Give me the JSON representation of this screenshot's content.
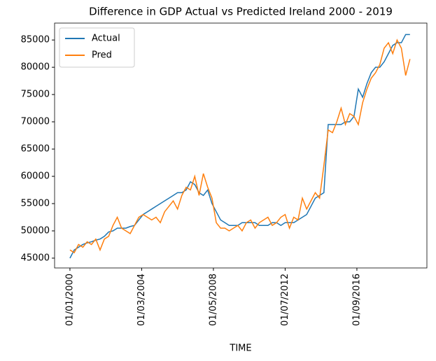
{
  "chart_data": {
    "type": "line",
    "title": "Difference in GDP Actual vs Predicted Ireland 2000 - 2019",
    "x_label": "TIME",
    "x": [
      0,
      3,
      6,
      9,
      12,
      15,
      18,
      21,
      24,
      27,
      30,
      33,
      36,
      39,
      42,
      45,
      48,
      51,
      54,
      57,
      60,
      63,
      66,
      69,
      72,
      75,
      78,
      81,
      84,
      87,
      90,
      93,
      96,
      99,
      102,
      105,
      108,
      111,
      114,
      117,
      120,
      123,
      126,
      129,
      132,
      135,
      138,
      141,
      144,
      147,
      150,
      153,
      156,
      159,
      162,
      165,
      168,
      171,
      174,
      177,
      180,
      183,
      186,
      189,
      192,
      195,
      198,
      201,
      204,
      207,
      210,
      213,
      216,
      219,
      222,
      225,
      228,
      231,
      234,
      237
    ],
    "series": [
      {
        "name": "Actual",
        "color": "#1f77b4",
        "values": [
          45000,
          46500,
          47000,
          47500,
          47800,
          48000,
          48300,
          48500,
          49000,
          49800,
          50000,
          50500,
          50500,
          50500,
          50800,
          51000,
          52000,
          53000,
          53500,
          54000,
          54500,
          55000,
          55500,
          56000,
          56500,
          57000,
          57000,
          57500,
          59000,
          58500,
          57000,
          56500,
          57500,
          55000,
          53500,
          52000,
          51500,
          51000,
          51000,
          51000,
          51500,
          51500,
          51500,
          51500,
          51000,
          51000,
          51000,
          51500,
          51500,
          51000,
          51500,
          51500,
          51500,
          52000,
          52500,
          53000,
          54500,
          56000,
          56500,
          57000,
          69500,
          69500,
          69500,
          69500,
          70000,
          70000,
          71000,
          76000,
          74500,
          77000,
          79000,
          80000,
          80000,
          81000,
          82500,
          84000,
          84500,
          84500,
          86000,
          86000
        ]
      },
      {
        "name": "Pred",
        "color": "#ff7f0e",
        "values": [
          46500,
          46000,
          47500,
          47000,
          48000,
          47500,
          48500,
          46500,
          48500,
          49000,
          51000,
          52500,
          50500,
          50000,
          49500,
          51000,
          52500,
          53000,
          52500,
          52000,
          52500,
          51500,
          53500,
          54500,
          55500,
          54000,
          56500,
          58000,
          57500,
          60000,
          56500,
          60500,
          58000,
          56000,
          51500,
          50500,
          50500,
          50000,
          50500,
          51000,
          50000,
          51500,
          52000,
          50500,
          51500,
          52000,
          52500,
          51000,
          51500,
          52500,
          53000,
          50500,
          52500,
          52000,
          56000,
          54000,
          55500,
          57000,
          56000,
          62000,
          68500,
          68000,
          70000,
          72500,
          69500,
          71500,
          71000,
          69500,
          73500,
          76000,
          78000,
          79000,
          80500,
          83500,
          84500,
          82500,
          85000,
          83500,
          78500,
          81500
        ]
      }
    ],
    "xlim": [
      -10.7,
      248.8
    ],
    "xticks": [
      {
        "value": 0,
        "label": "01/01/2000"
      },
      {
        "value": 50,
        "label": "01/03/2004"
      },
      {
        "value": 100,
        "label": "01/05/2008"
      },
      {
        "value": 150,
        "label": "01/07/2012"
      },
      {
        "value": 200,
        "label": "01/09/2016"
      }
    ],
    "ylim": [
      43200,
      88100
    ],
    "yticks": [
      45000,
      50000,
      55000,
      60000,
      65000,
      70000,
      75000,
      80000,
      85000
    ],
    "legend": "upper left"
  }
}
